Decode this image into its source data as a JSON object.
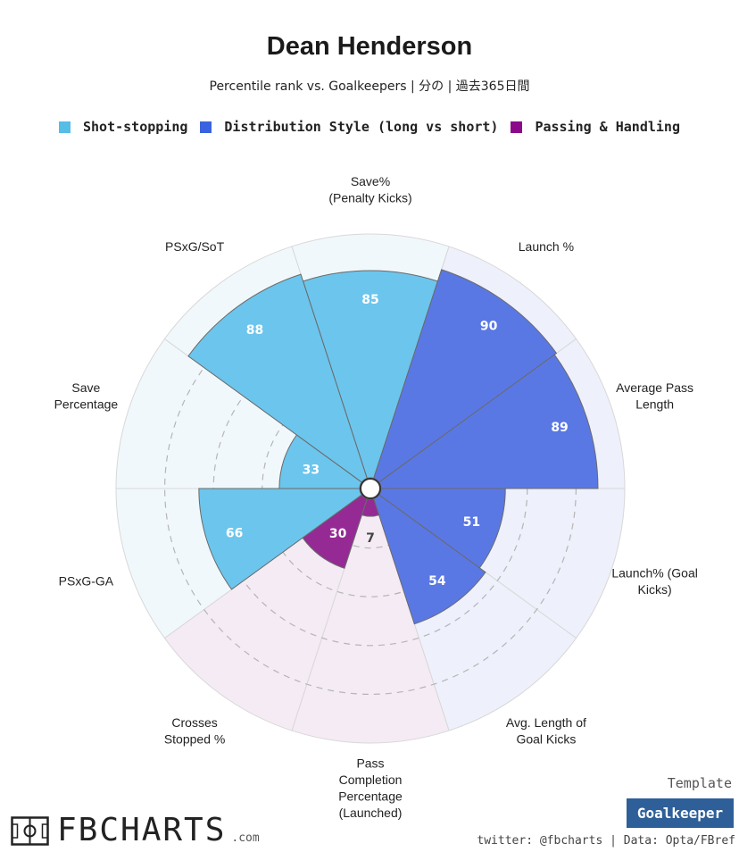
{
  "header": {
    "title": "Dean Henderson",
    "subtitle": "Percentile rank vs. Goalkeepers | 分の | 過去365日間"
  },
  "legend": [
    {
      "label": "Shot-stopping",
      "color": "#55bde6"
    },
    {
      "label": "Distribution Style (long vs short)",
      "color": "#3a62e0"
    },
    {
      "label": "Passing & Handling",
      "color": "#8b0a8b"
    }
  ],
  "chart_data": {
    "type": "polar-bar",
    "scale": [
      0,
      100
    ],
    "categories": [
      {
        "label": [
          "Save%",
          "(Penalty Kicks)"
        ],
        "value": 85,
        "group": "Shot-stopping"
      },
      {
        "label": [
          "Launch %"
        ],
        "value": 90,
        "group": "Distribution Style (long vs short)"
      },
      {
        "label": [
          "Average Pass",
          "Length"
        ],
        "value": 89,
        "group": "Distribution Style (long vs short)"
      },
      {
        "label": [
          "Launch% (Goal",
          "Kicks)"
        ],
        "value": 51,
        "group": "Distribution Style (long vs short)"
      },
      {
        "label": [
          "Avg. Length of",
          "Goal Kicks"
        ],
        "value": 54,
        "group": "Distribution Style (long vs short)"
      },
      {
        "label": [
          "Pass",
          "Completion",
          "Percentage",
          "(Launched)"
        ],
        "value": 7,
        "group": "Passing & Handling"
      },
      {
        "label": [
          "Crosses",
          "Stopped %"
        ],
        "value": 30,
        "group": "Passing & Handling"
      },
      {
        "label": [
          "PSxG-GA"
        ],
        "value": 66,
        "group": "Shot-stopping"
      },
      {
        "label": [
          "Save",
          "Percentage"
        ],
        "value": 33,
        "group": "Shot-stopping"
      },
      {
        "label": [
          "PSxG/SoT"
        ],
        "value": 88,
        "group": "Shot-stopping"
      }
    ],
    "group_colors": {
      "Shot-stopping": {
        "bar": "#6cc5ec",
        "bg": "#f1f8fc"
      },
      "Distribution Style (long vs short)": {
        "bar": "#5a78e4",
        "bg": "#eef0fb"
      },
      "Passing & Handling": {
        "bar": "#952a95",
        "bg": "#f5ebf4"
      }
    }
  },
  "footer": {
    "template_label": "Template",
    "template_value": "Goalkeeper",
    "credits": "twitter: @fbcharts | Data: Opta/FBref",
    "logo_text": "FBCHARTS",
    "logo_suffix": ".com"
  }
}
